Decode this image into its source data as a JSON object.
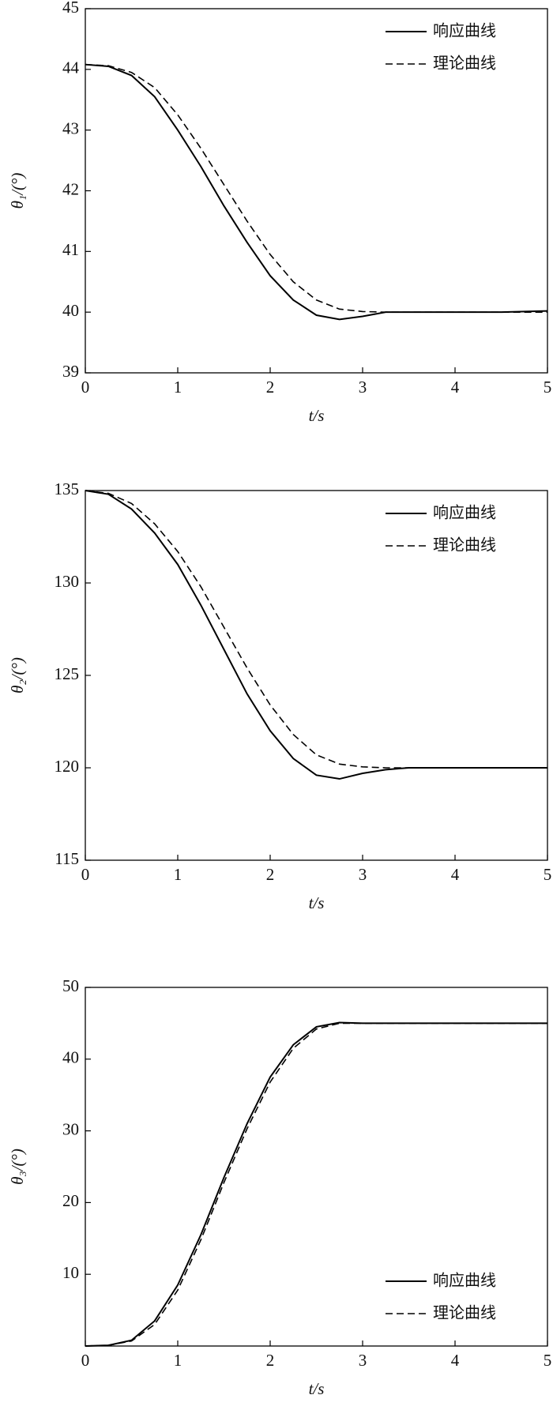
{
  "chart_data": [
    {
      "type": "line",
      "ylabel": "θ₁/(°)",
      "xlabel": "t/s",
      "x": [
        0,
        0.25,
        0.5,
        0.75,
        1,
        1.25,
        1.5,
        1.75,
        2,
        2.25,
        2.5,
        2.75,
        3,
        3.25,
        3.5,
        4,
        4.5,
        5
      ],
      "series": [
        {
          "name": "响应曲线",
          "color": "#000000",
          "dashed": false,
          "values": [
            44.08,
            44.05,
            43.9,
            43.55,
            43.0,
            42.4,
            41.75,
            41.15,
            40.6,
            40.2,
            39.95,
            39.88,
            39.93,
            40.0,
            40.0,
            40.0,
            40.0,
            40.02
          ]
        },
        {
          "name": "理论曲线",
          "color": "#000000",
          "dashed": true,
          "values": [
            44.08,
            44.06,
            43.95,
            43.7,
            43.25,
            42.7,
            42.1,
            41.5,
            40.95,
            40.5,
            40.2,
            40.05,
            40.01,
            40.0,
            40.0,
            40.0,
            40.0,
            40.0
          ]
        }
      ],
      "xlim": [
        0,
        5
      ],
      "xticks": [
        0,
        1,
        2,
        3,
        4,
        5
      ],
      "ylim": [
        39,
        45
      ],
      "yticks": [
        39,
        40,
        41,
        42,
        43,
        44,
        45
      ],
      "legend": "upper right"
    },
    {
      "type": "line",
      "ylabel": "θ₂/(°)",
      "xlabel": "t/s",
      "x": [
        0,
        0.25,
        0.5,
        0.75,
        1,
        1.25,
        1.5,
        1.75,
        2,
        2.25,
        2.5,
        2.75,
        3,
        3.25,
        3.5,
        4,
        4.5,
        5
      ],
      "series": [
        {
          "name": "响应曲线",
          "color": "#000000",
          "dashed": false,
          "values": [
            135,
            134.8,
            134.0,
            132.7,
            131.0,
            128.8,
            126.4,
            124.0,
            122.0,
            120.5,
            119.6,
            119.4,
            119.7,
            119.9,
            120,
            120,
            120,
            120
          ]
        },
        {
          "name": "理论曲线",
          "color": "#000000",
          "dashed": true,
          "values": [
            135,
            134.85,
            134.3,
            133.2,
            131.7,
            129.8,
            127.6,
            125.4,
            123.4,
            121.8,
            120.7,
            120.2,
            120.05,
            120,
            120,
            120,
            120,
            120
          ]
        }
      ],
      "xlim": [
        0,
        5
      ],
      "xticks": [
        0,
        1,
        2,
        3,
        4,
        5
      ],
      "ylim": [
        115,
        135
      ],
      "yticks": [
        115,
        120,
        125,
        130,
        135
      ],
      "legend": "upper right"
    },
    {
      "type": "line",
      "ylabel": "θ₃/(°)",
      "xlabel": "t/s",
      "x": [
        0,
        0.25,
        0.5,
        0.75,
        1,
        1.25,
        1.5,
        1.75,
        2,
        2.25,
        2.5,
        2.75,
        3,
        3.25,
        3.5,
        4,
        4.5,
        5
      ],
      "series": [
        {
          "name": "响应曲线",
          "color": "#000000",
          "dashed": false,
          "values": [
            0,
            0.1,
            0.8,
            3.5,
            8.5,
            15.5,
            23.5,
            31,
            37.5,
            42,
            44.5,
            45.1,
            45,
            45,
            45,
            45,
            45,
            45
          ]
        },
        {
          "name": "理论曲线",
          "color": "#000000",
          "dashed": true,
          "values": [
            0,
            0.1,
            0.7,
            3.0,
            7.8,
            14.8,
            22.8,
            30.3,
            36.8,
            41.5,
            44.2,
            45.0,
            45,
            45,
            45,
            45,
            45,
            45
          ]
        }
      ],
      "xlim": [
        0,
        5
      ],
      "xticks": [
        0,
        1,
        2,
        3,
        4,
        5
      ],
      "ylim": [
        0,
        50
      ],
      "yticks": [
        10,
        20,
        30,
        40,
        50
      ],
      "legend": "lower right"
    }
  ]
}
